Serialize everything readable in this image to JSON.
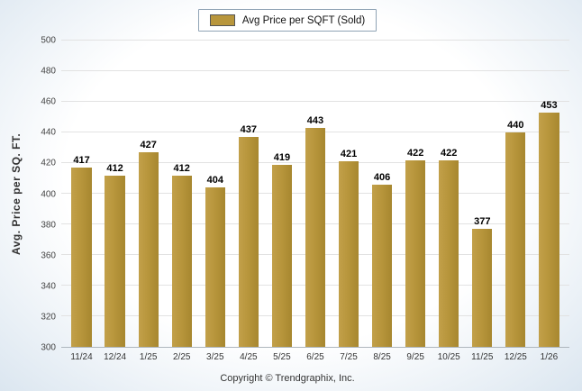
{
  "legend": {
    "label": "Avg Price per SQFT (Sold)"
  },
  "ylabel": "Avg. Price per SQ. FT.",
  "footer": "Copyright © Trendgraphix, Inc.",
  "colors": {
    "bar": "#B8963C",
    "grid": "#E2E2E2",
    "background_edge": "#DBE6F0"
  },
  "chart_data": {
    "type": "bar",
    "categories": [
      "11/24",
      "12/24",
      "1/25",
      "2/25",
      "3/25",
      "4/25",
      "5/25",
      "6/25",
      "7/25",
      "8/25",
      "9/25",
      "10/25",
      "11/25",
      "12/25",
      "1/26"
    ],
    "values": [
      417,
      412,
      427,
      412,
      404,
      437,
      419,
      443,
      421,
      406,
      422,
      422,
      377,
      440,
      453
    ],
    "title": "Avg Price per SQFT (Sold)",
    "xlabel": "",
    "ylabel": "Avg. Price per SQ. FT.",
    "ylim": [
      300,
      500
    ],
    "ytick_step": 20,
    "grid": true,
    "legend_position": "top"
  }
}
